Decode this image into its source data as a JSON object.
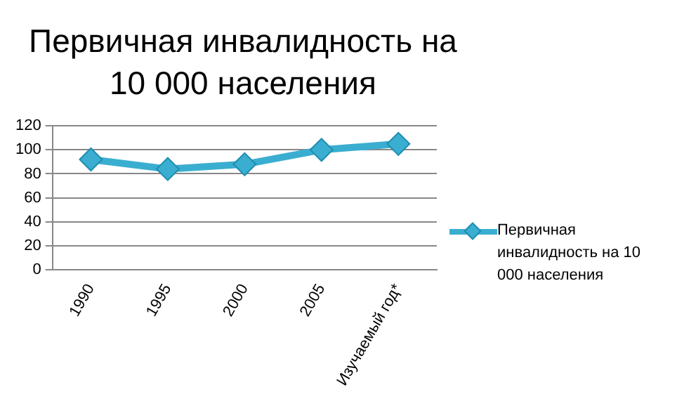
{
  "chart_data": {
    "type": "line",
    "title": "Первичная инвалидность на 10 000 населения",
    "categories": [
      "1990",
      "1995",
      "2000",
      "2005",
      "Изучаемый год*"
    ],
    "series": [
      {
        "name": "Первичная инвалидность на 10 000 населения",
        "color": "#3aaed0",
        "values": [
          92,
          84,
          88,
          100,
          105
        ]
      }
    ],
    "ylim": [
      0,
      120
    ],
    "yticks": [
      0,
      20,
      40,
      60,
      80,
      100,
      120
    ],
    "grid": "y",
    "legend": "right",
    "marker": "diamond",
    "line_style": "solid"
  }
}
